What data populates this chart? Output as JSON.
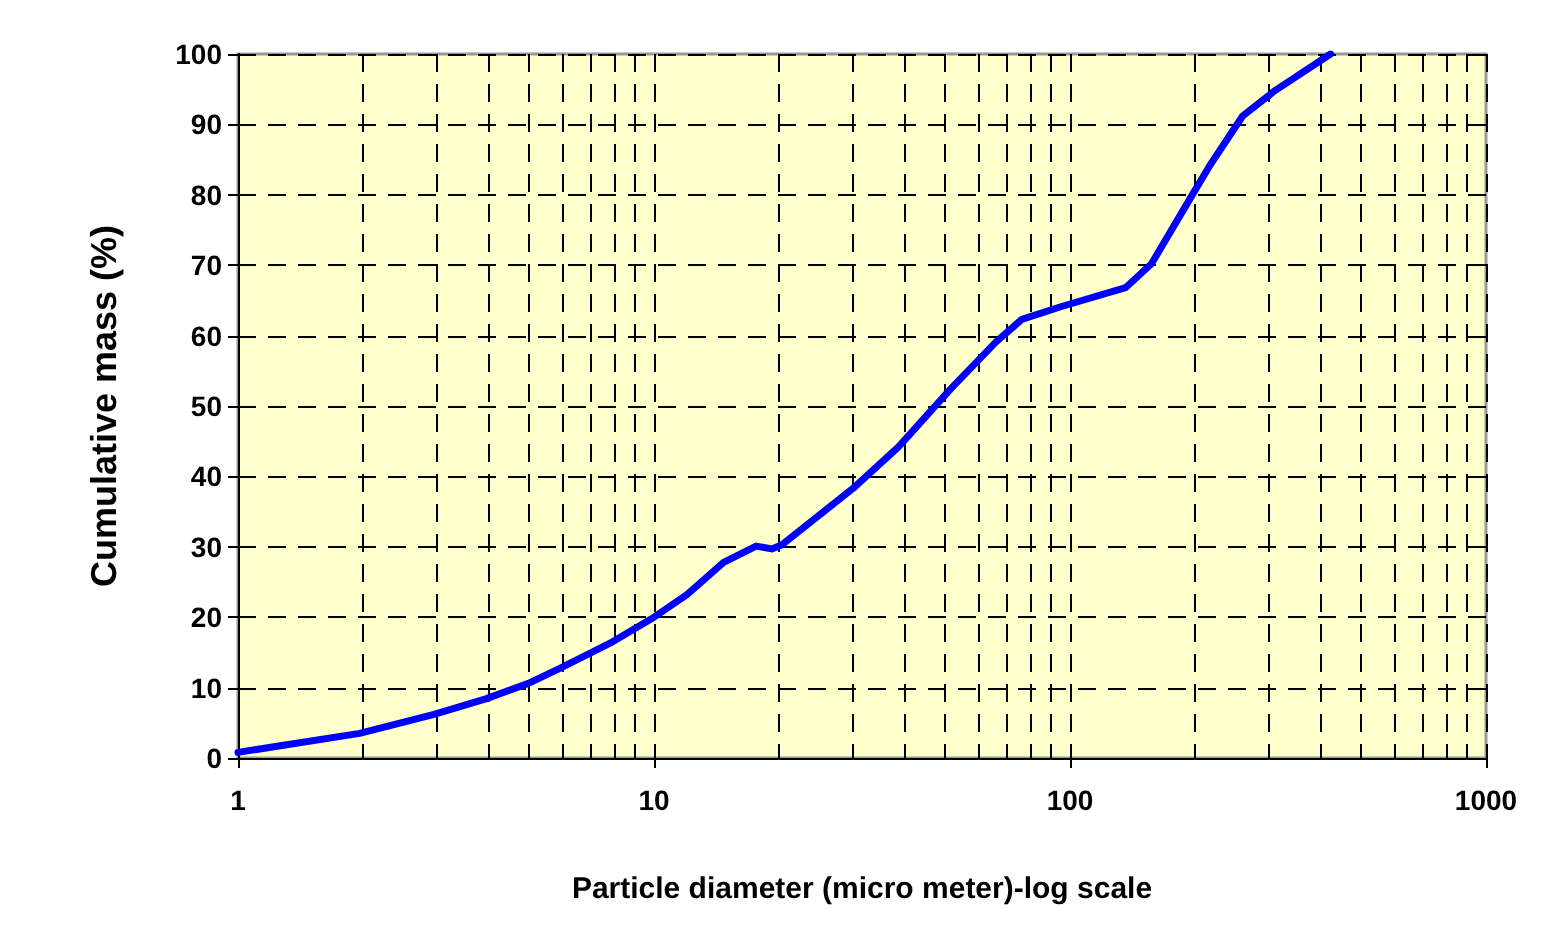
{
  "chart_data": {
    "type": "line",
    "xlabel": "Particle diameter (micro meter)-log scale",
    "ylabel": "Cumulative mass (%)",
    "log": "x",
    "x": [
      1,
      1.96,
      2.96,
      3.94,
      4.99,
      5.97,
      7.95,
      10,
      12,
      14.7,
      17.6,
      19.2,
      20.3,
      30.1,
      38.7,
      51.6,
      66.4,
      76.6,
      95,
      136,
      157,
      195,
      217,
      260,
      311,
      423
    ],
    "series": [
      {
        "color": "#0000ff",
        "values": [
          0.8,
          3.5,
          6.2,
          8.4,
          10.6,
          12.8,
          16.5,
          20,
          23.2,
          27.8,
          30.1,
          29.7,
          30.3,
          38.3,
          44.2,
          52.4,
          59.1,
          62.3,
          64.1,
          66.8,
          70.2,
          79.6,
          84.2,
          91.2,
          94.8,
          100
        ]
      }
    ],
    "xlim": [
      1,
      1000
    ],
    "xticks": [
      1,
      10,
      100,
      1000
    ],
    "ylim": [
      0,
      100
    ],
    "yticks": [
      0,
      10,
      20,
      30,
      40,
      50,
      60,
      70,
      80,
      90,
      100
    ],
    "grid": true,
    "line_style": "solid",
    "marker": "none"
  }
}
